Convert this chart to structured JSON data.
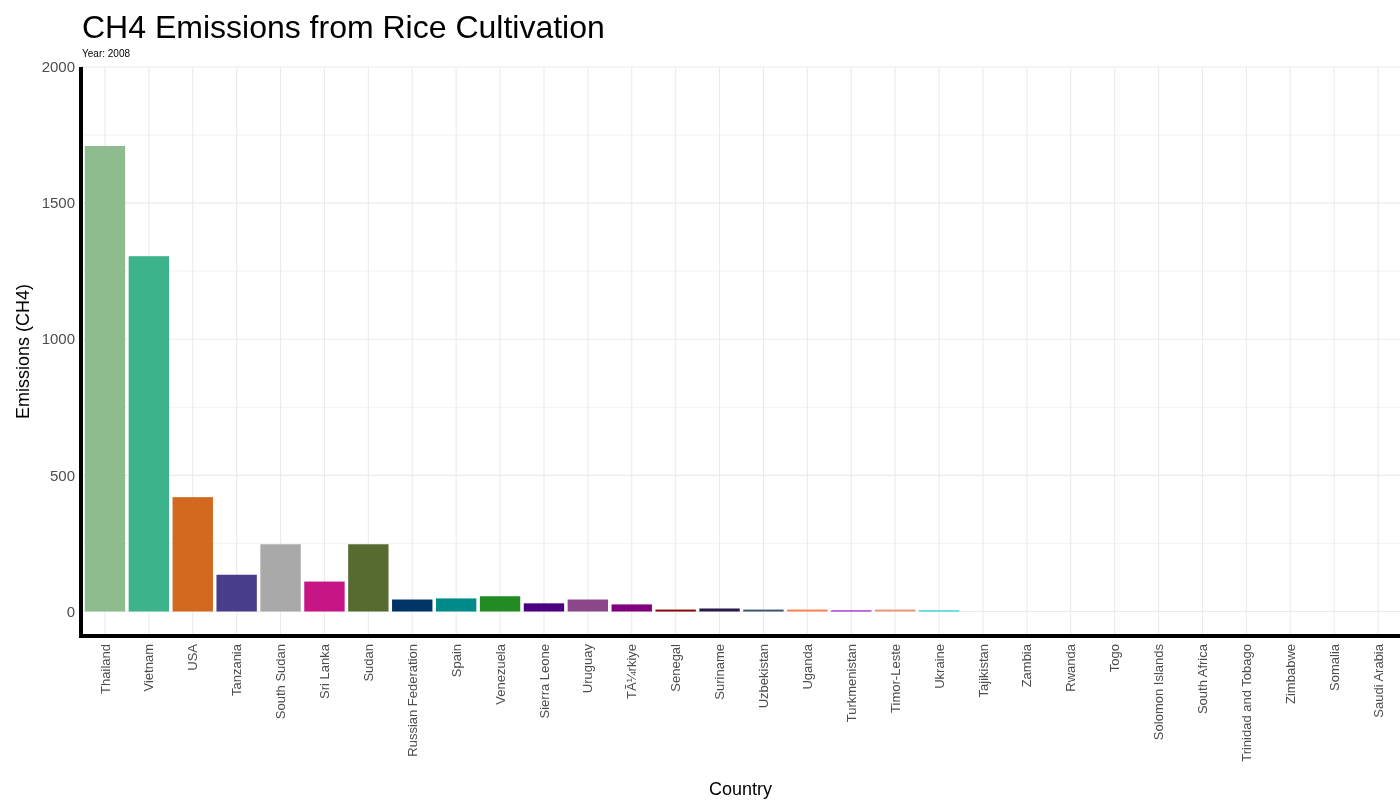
{
  "chart_data": {
    "type": "bar",
    "title": "CH4 Emissions from Rice Cultivation",
    "subtitle": "Year: 2008",
    "xlabel": "Country",
    "ylabel": "Emissions (CH4)",
    "categories": [
      "Thailand",
      "Vietnam",
      "USA",
      "Tanzania",
      "South Sudan",
      "Sri Lanka",
      "Sudan",
      "Russian Federation",
      "Spain",
      "Venezuela",
      "Sierra Leone",
      "Uruguay",
      "TÃ¼rkiye",
      "Senegal",
      "Suriname",
      "Uzbekistan",
      "Uganda",
      "Turkmenistan",
      "Timor-Leste",
      "Ukraine",
      "Tajikistan",
      "Zambia",
      "Rwanda",
      "Togo",
      "Solomon Islands",
      "South Africa",
      "Trinidad and Tobago",
      "Zimbabwe",
      "Somalia",
      "Saudi Arabia"
    ],
    "values": [
      1710,
      1305,
      420,
      135,
      247,
      110,
      247,
      44,
      48,
      56,
      30,
      44,
      26,
      7,
      11,
      7,
      7,
      4,
      7,
      4,
      0,
      0,
      0,
      0,
      0,
      0,
      0,
      0,
      0,
      0
    ],
    "colors": [
      "#8fbc8f",
      "#3cb38a",
      "#d2691e",
      "#483d8b",
      "#a9a9a9",
      "#c71585",
      "#556b2f",
      "#003366",
      "#008b8b",
      "#228b22",
      "#4b0082",
      "#8b4789",
      "#800080",
      "#8b0000",
      "#2a1a4a",
      "#36586e",
      "#ff7f50",
      "#9400d3",
      "#e9967a",
      "#00ced1",
      "#cd5c5c",
      "#6b8e23",
      "#4682b4",
      "#daa520",
      "#20b2aa",
      "#b8860b",
      "#5f9ea0",
      "#bc8f8f",
      "#708090",
      "#9acd32"
    ],
    "ylim": [
      -90,
      2000
    ],
    "yticks": [
      0,
      {
        "value": 250,
        "label": null
      },
      500,
      {
        "value": 750,
        "label": null
      },
      1000,
      {
        "value": 1250,
        "label": null
      },
      1500,
      {
        "value": 1750,
        "label": null
      },
      2000
    ],
    "grid": true
  }
}
